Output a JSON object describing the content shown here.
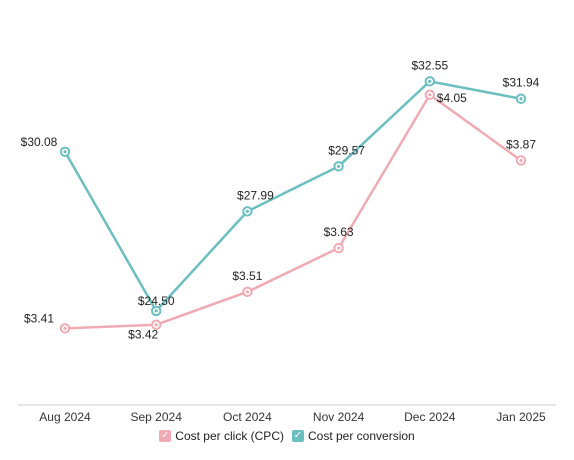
{
  "chart_data": {
    "type": "line",
    "categories": [
      "Aug 2024",
      "Sep 2024",
      "Oct 2024",
      "Nov 2024",
      "Dec 2024",
      "Jan 2025"
    ],
    "series": [
      {
        "name": "Cost per click (CPC)",
        "color": "#f0aab4",
        "values": [
          3.41,
          3.42,
          3.51,
          3.63,
          4.05,
          3.87
        ],
        "labels": [
          "$3.41",
          "$3.42",
          "$3.51",
          "$3.63",
          "$4.05",
          "$3.87"
        ]
      },
      {
        "name": "Cost per conversion",
        "color": "#6cbfc0",
        "values": [
          30.08,
          24.5,
          27.99,
          29.57,
          32.55,
          31.94
        ],
        "labels": [
          "$30.08",
          "$24.50",
          "$27.99",
          "$29.57",
          "$32.55",
          "$31.94"
        ]
      }
    ],
    "dual_axis": true,
    "axis_labels_visible": false,
    "grid": false,
    "legend_position": "bottom",
    "legend_checked": true
  }
}
